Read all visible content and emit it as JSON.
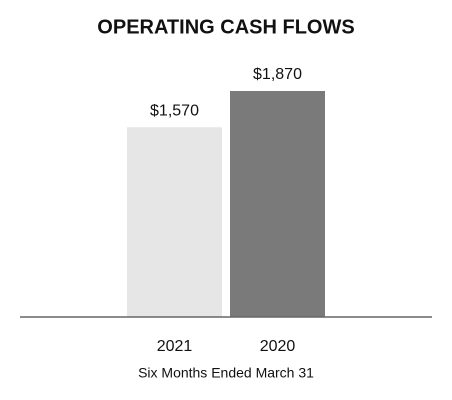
{
  "chart_data": {
    "type": "bar",
    "title": "OPERATING CASH FLOWS",
    "categories": [
      "2021",
      "2020"
    ],
    "values": [
      1570,
      1870
    ],
    "value_labels": [
      "$1,570",
      "$1,870"
    ],
    "colors": [
      "#e6e6e6",
      "#7a7a7a"
    ],
    "x_label": "Six Months Ended March 31"
  }
}
